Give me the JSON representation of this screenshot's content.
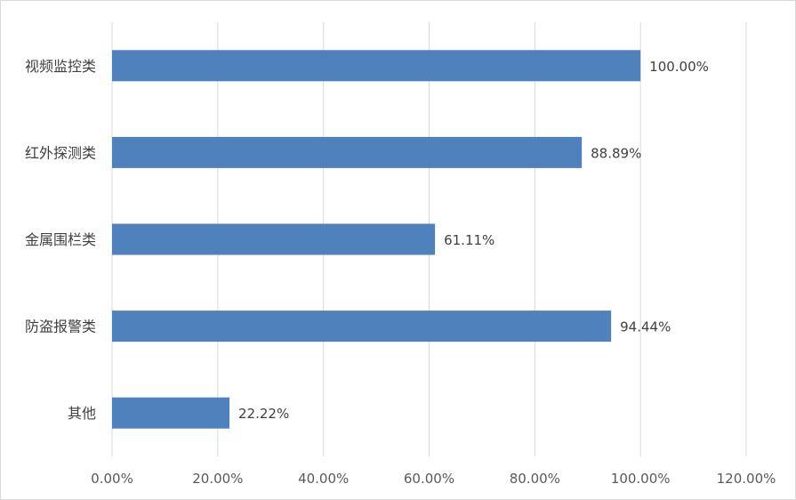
{
  "chart_data": {
    "type": "bar",
    "orientation": "horizontal",
    "categories": [
      "视频监控类",
      "红外探测类",
      "金属围栏类",
      "防盗报警类",
      "其他"
    ],
    "values": [
      100.0,
      88.89,
      61.11,
      94.44,
      22.22
    ],
    "value_labels": [
      "100.00%",
      "88.89%",
      "61.11%",
      "94.44%",
      "22.22%"
    ],
    "x_ticks": [
      "0.00%",
      "20.00%",
      "40.00%",
      "60.00%",
      "80.00%",
      "100.00%",
      "120.00%"
    ],
    "xlim": [
      0,
      120
    ],
    "grid": true,
    "legend": "none",
    "bar_color": "#4f81bd",
    "grid_color": "#d9d9d9"
  }
}
